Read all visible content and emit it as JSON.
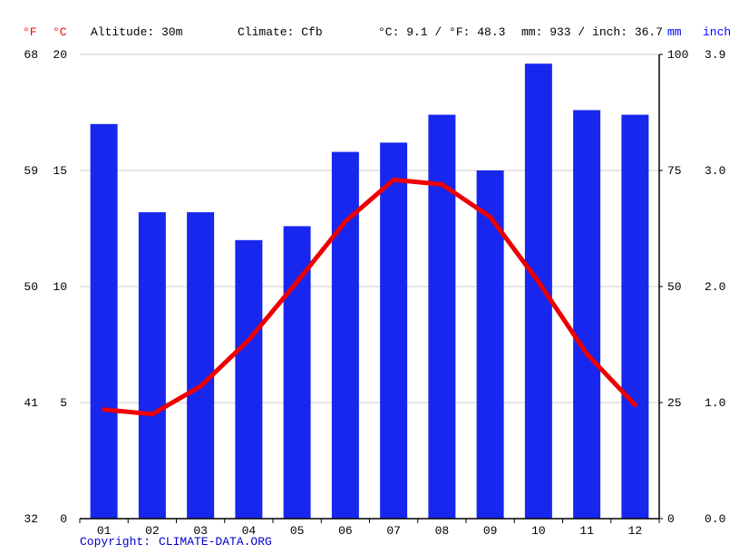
{
  "header": {
    "f_label": "°F",
    "c_label": "°C",
    "altitude": "Altitude: 30m",
    "climate": "Climate: Cfb",
    "temp_summary": "°C: 9.1 / °F: 48.3",
    "precip_summary": "mm: 933 / inch: 36.7",
    "mm_label": "mm",
    "inch_label": "inch"
  },
  "footer": {
    "copyright": "Copyright:",
    "link": "CLIMATE-DATA.ORG"
  },
  "colors": {
    "bar": "#1727ee",
    "line": "#ee0000",
    "grid": "#cccccc",
    "axis": "#000000",
    "red_text": "#ff0000",
    "blue_text": "#0000ff",
    "link_text": "#0000cc"
  },
  "chart_data": {
    "type": "bar",
    "title": "Climate graph (Cfb), altitude 30m",
    "categories": [
      "01",
      "02",
      "03",
      "04",
      "05",
      "06",
      "07",
      "08",
      "09",
      "10",
      "11",
      "12"
    ],
    "series": [
      {
        "name": "precipitation_mm",
        "type": "bar",
        "values": [
          85,
          66,
          66,
          60,
          63,
          79,
          81,
          87,
          75,
          98,
          88,
          87
        ]
      },
      {
        "name": "temperature_c",
        "type": "line",
        "values": [
          4.7,
          4.5,
          5.7,
          7.7,
          10.2,
          12.8,
          14.6,
          14.4,
          13.0,
          10.2,
          7.1,
          4.9
        ]
      }
    ],
    "axes": {
      "left_f": {
        "label": "°F",
        "ticks": [
          "68",
          "59",
          "50",
          "41",
          "32"
        ]
      },
      "left_c": {
        "label": "°C",
        "ticks": [
          "20",
          "15",
          "10",
          "5",
          "0"
        ],
        "range": [
          0,
          20
        ]
      },
      "right_mm": {
        "label": "mm",
        "ticks": [
          "100",
          "75",
          "50",
          "25",
          "0"
        ],
        "range": [
          0,
          100
        ]
      },
      "right_inch": {
        "label": "inch",
        "ticks": [
          "3.9",
          "3.0",
          "2.0",
          "1.0",
          "0.0"
        ]
      }
    },
    "grid": true,
    "legend": false
  }
}
